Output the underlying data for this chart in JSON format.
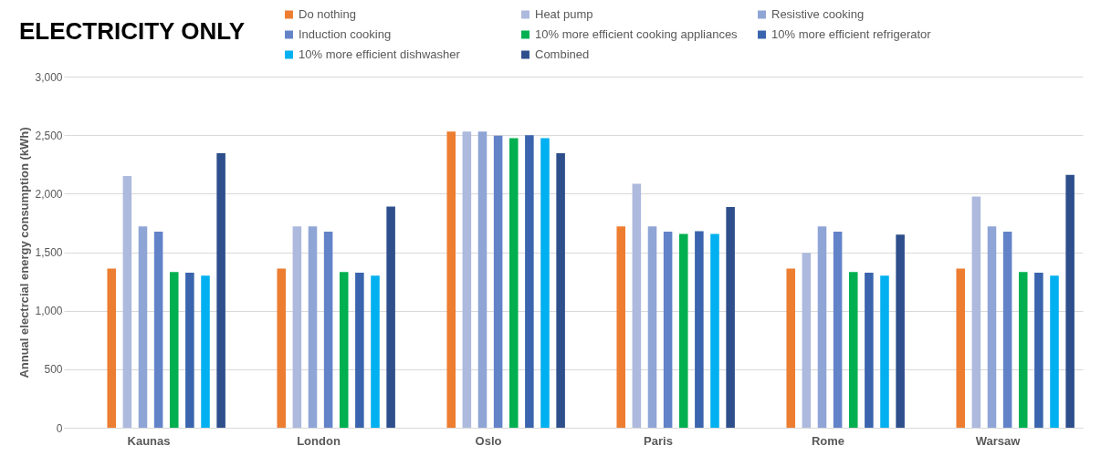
{
  "chart_data": {
    "type": "bar",
    "title": "ELECTRICITY ONLY",
    "ylabel": "Annual electrcial energy consumption (kWh)",
    "categories": [
      "Kaunas",
      "London",
      "Oslo",
      "Paris",
      "Rome",
      "Warsaw"
    ],
    "series": [
      {
        "name": "Do nothing",
        "color": "#ed7d31",
        "values": [
          1360,
          1360,
          2530,
          1720,
          1360,
          1360
        ]
      },
      {
        "name": "Heat pump",
        "color": "#adb9dd",
        "values": [
          2150,
          1720,
          2530,
          2085,
          1495,
          1975
        ]
      },
      {
        "name": "Resistive cooking",
        "color": "#8fa5d6",
        "values": [
          1720,
          1720,
          2530,
          1720,
          1720,
          1720
        ]
      },
      {
        "name": "Induction cooking",
        "color": "#6383c9",
        "values": [
          1675,
          1675,
          2495,
          1675,
          1675,
          1675
        ]
      },
      {
        "name": "10% more efficient cooking appliances",
        "color": "#00b050",
        "values": [
          1330,
          1330,
          2475,
          1655,
          1330,
          1330
        ]
      },
      {
        "name": "10% more efficient refrigerator",
        "color": "#3a64ad",
        "values": [
          1325,
          1325,
          2500,
          1680,
          1325,
          1325
        ]
      },
      {
        "name": "10% more efficient dishwasher",
        "color": "#00b0f0",
        "values": [
          1300,
          1300,
          2475,
          1655,
          1300,
          1300
        ]
      },
      {
        "name": "Combined",
        "color": "#2e4f8c",
        "values": [
          2345,
          1890,
          2345,
          1885,
          1650,
          2160
        ]
      }
    ],
    "ylim": [
      0,
      3000
    ],
    "yticks": [
      0,
      500,
      {
        "value": 1000,
        "label": "1,000"
      },
      {
        "value": 1500,
        "label": "1,500"
      },
      {
        "value": 2000,
        "label": "2,000"
      },
      {
        "value": 2500,
        "label": "2,500"
      },
      {
        "value": 3000,
        "label": "3,000"
      }
    ],
    "grid": "y",
    "legend": "top"
  }
}
